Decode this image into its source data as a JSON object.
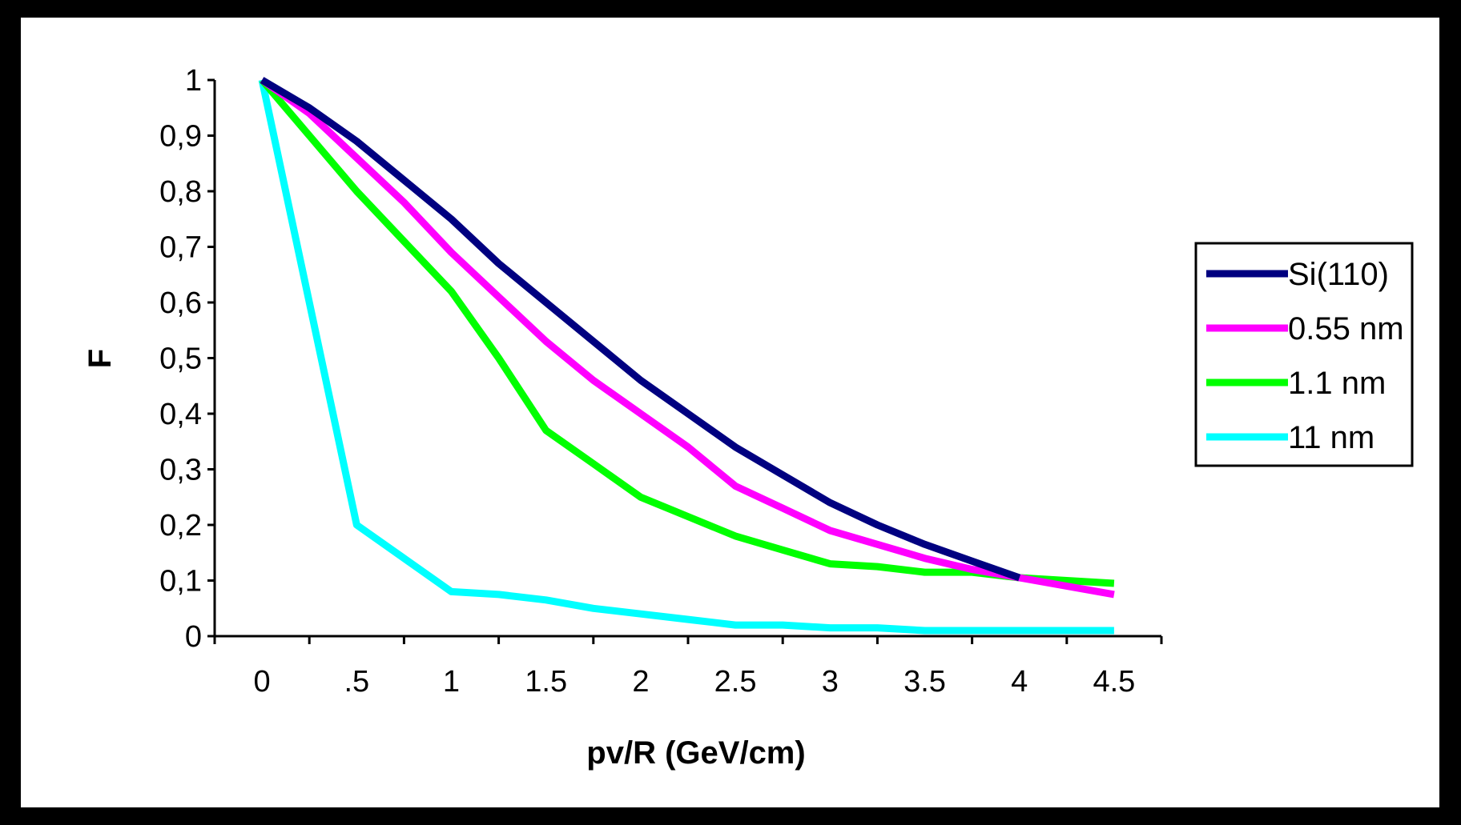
{
  "chart_data": {
    "type": "line",
    "title": "",
    "xlabel": "pv/R (GeV/cm)",
    "ylabel": "F",
    "x_ticks": [
      "0",
      ".5",
      "1",
      "1.5",
      "2",
      "2.5",
      "3",
      "3.5",
      "4",
      "4.5"
    ],
    "y_ticks": [
      "0",
      "0,1",
      "0,2",
      "0,3",
      "0,4",
      "0,5",
      "0,6",
      "0,7",
      "0,8",
      "0,9",
      "1"
    ],
    "xlim": [
      -0.25,
      4.75
    ],
    "ylim": [
      0,
      1
    ],
    "grid": false,
    "legend_position": "right",
    "series": [
      {
        "name": "Si(110)",
        "color": "#000080",
        "x": [
          0,
          0.25,
          0.5,
          0.75,
          1,
          1.25,
          1.5,
          1.75,
          2,
          2.25,
          2.5,
          2.75,
          3,
          3.25,
          3.5,
          3.75,
          4
        ],
        "y": [
          1.0,
          0.95,
          0.89,
          0.82,
          0.75,
          0.67,
          0.6,
          0.53,
          0.46,
          0.4,
          0.34,
          0.29,
          0.24,
          0.2,
          0.165,
          0.135,
          0.105
        ]
      },
      {
        "name": "0.55 nm",
        "color": "#FF00FF",
        "x": [
          0,
          0.25,
          0.5,
          0.75,
          1,
          1.25,
          1.5,
          1.75,
          2,
          2.25,
          2.5,
          2.75,
          3,
          3.25,
          3.5,
          3.75,
          4,
          4.25,
          4.5
        ],
        "y": [
          1.0,
          0.94,
          0.86,
          0.78,
          0.69,
          0.61,
          0.53,
          0.46,
          0.4,
          0.34,
          0.27,
          0.23,
          0.19,
          0.165,
          0.14,
          0.12,
          0.105,
          0.09,
          0.075
        ]
      },
      {
        "name": "1.1 nm",
        "color": "#00FF00",
        "x": [
          0,
          0.25,
          0.5,
          0.75,
          1,
          1.25,
          1.5,
          1.75,
          2,
          2.25,
          2.5,
          2.75,
          3,
          3.25,
          3.5,
          3.75,
          4,
          4.25,
          4.5
        ],
        "y": [
          1.0,
          0.9,
          0.8,
          0.71,
          0.62,
          0.5,
          0.37,
          0.31,
          0.25,
          0.215,
          0.18,
          0.155,
          0.13,
          0.125,
          0.115,
          0.115,
          0.105,
          0.1,
          0.095
        ]
      },
      {
        "name": "11 nm",
        "color": "#00FFFF",
        "x": [
          0,
          0.25,
          0.5,
          0.75,
          1,
          1.25,
          1.5,
          1.75,
          2,
          2.25,
          2.5,
          2.75,
          3,
          3.25,
          3.5,
          3.75,
          4,
          4.25,
          4.5
        ],
        "y": [
          1.0,
          0.6,
          0.2,
          0.14,
          0.08,
          0.075,
          0.065,
          0.05,
          0.04,
          0.03,
          0.02,
          0.02,
          0.015,
          0.015,
          0.01,
          0.01,
          0.01,
          0.01,
          0.01
        ]
      }
    ]
  }
}
